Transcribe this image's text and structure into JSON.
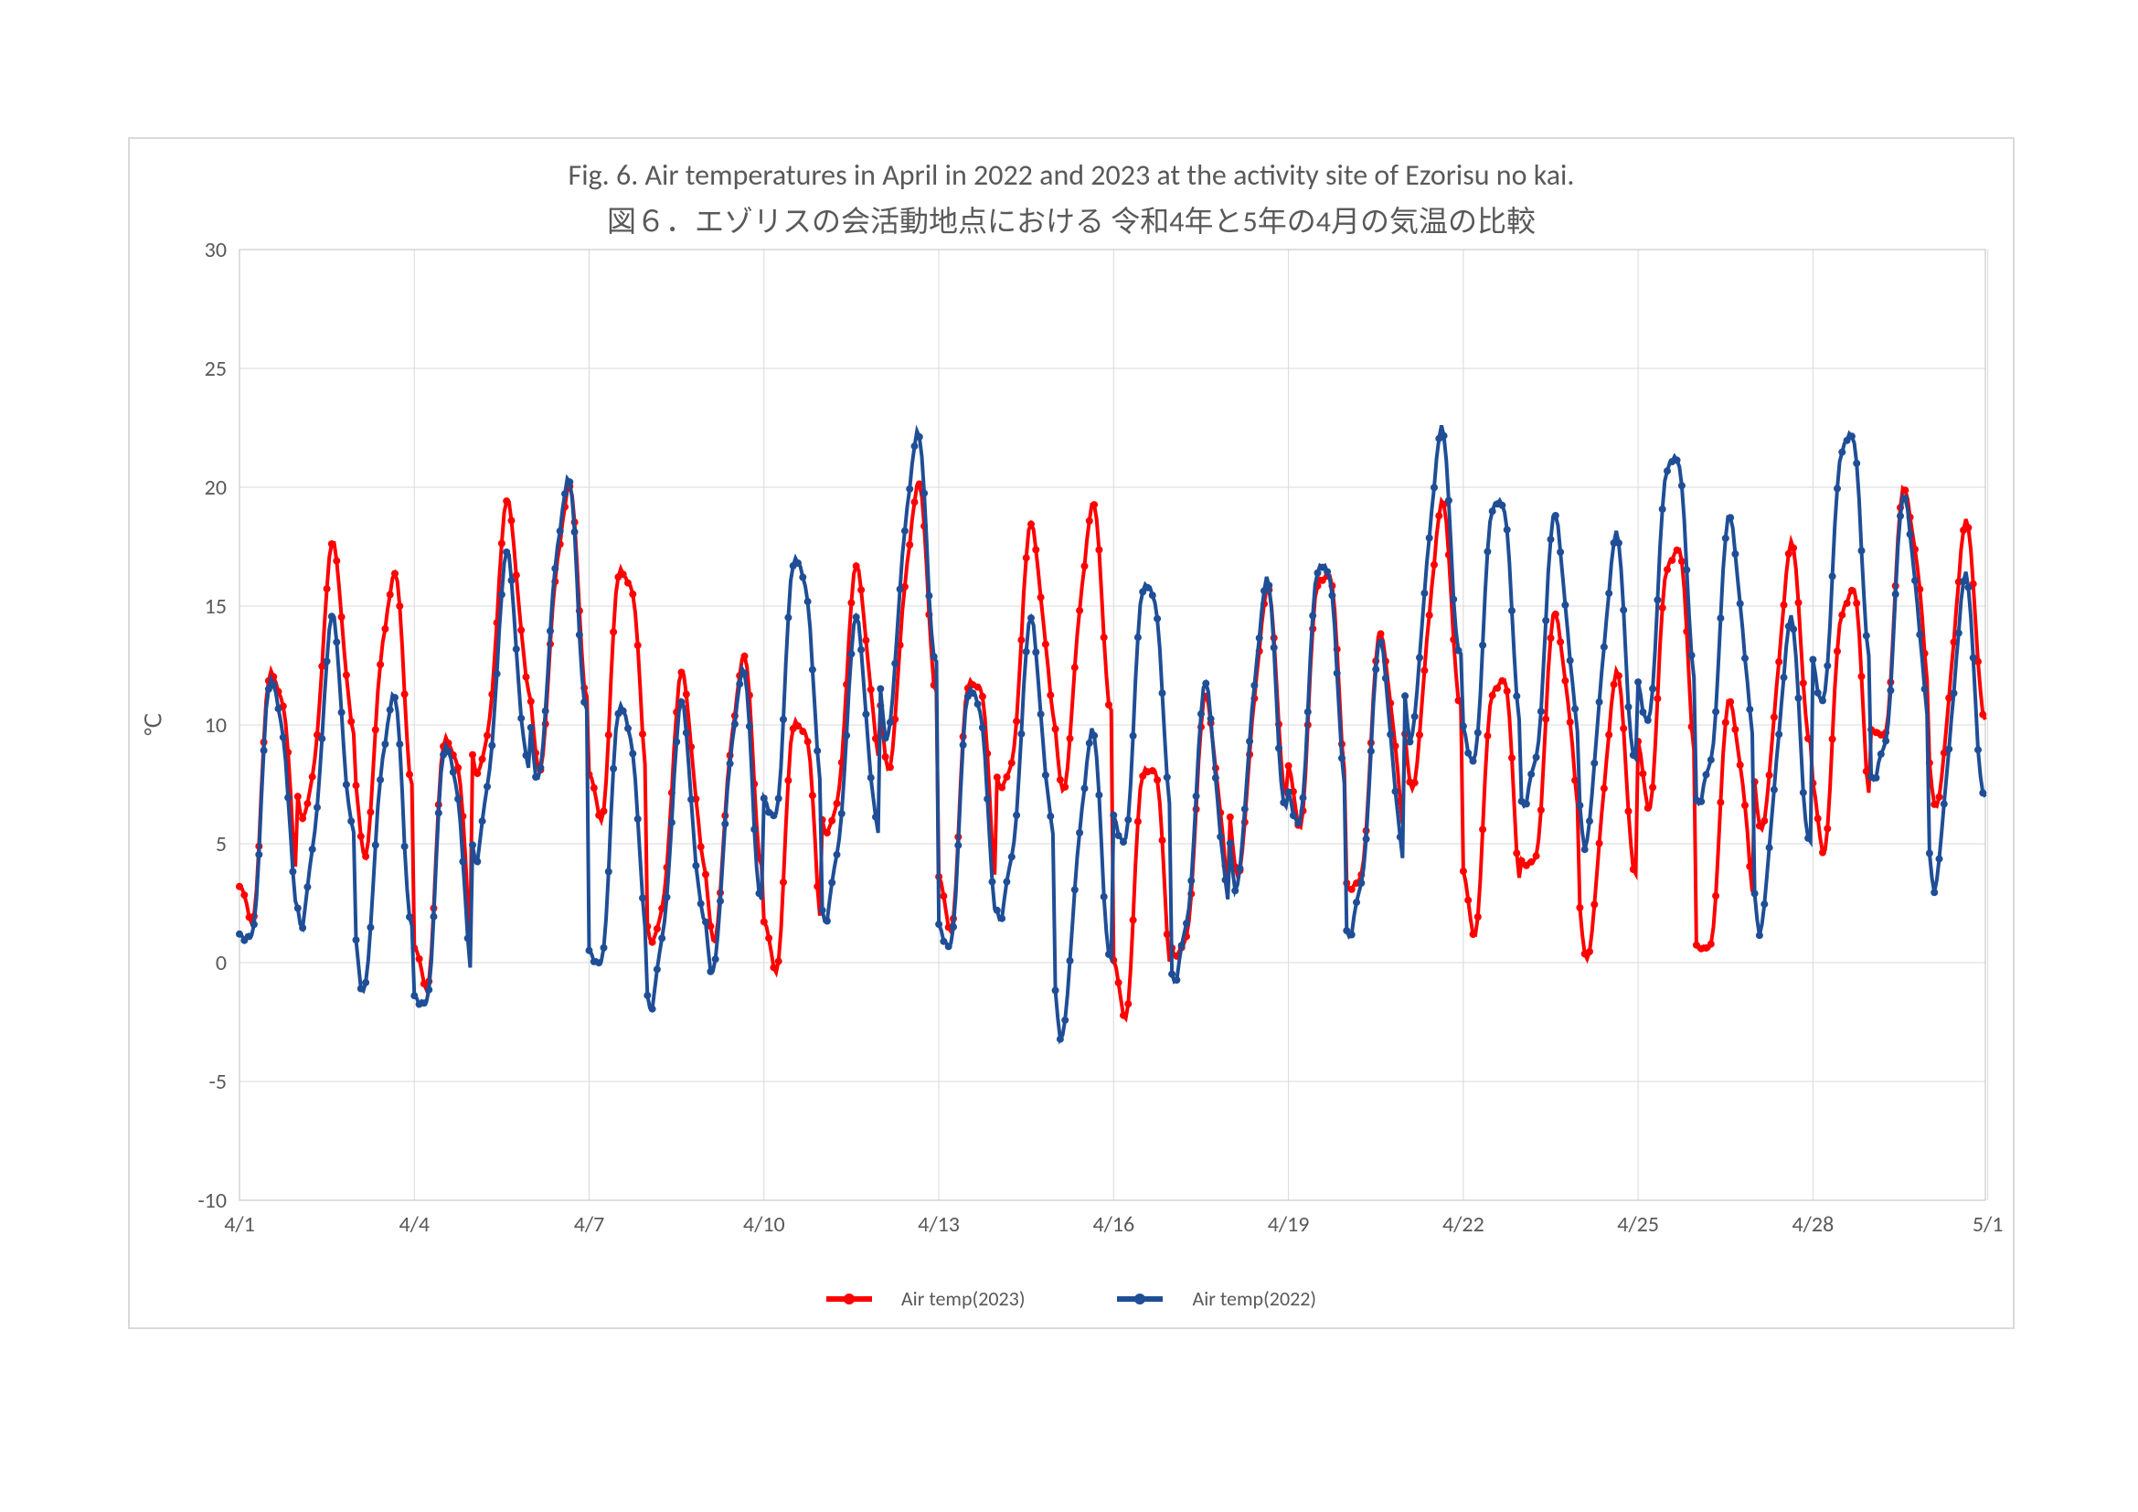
{
  "chart": {
    "type": "line",
    "title_en": "Fig. 6.  Air temperatures in April in 2022 and 2023 at the activity site of Ezorisu no kai.",
    "title_ja": "図６．エゾリスの会活動地点における 令和4年と5年の4月の気温の比較",
    "title_fontsize_en": 32,
    "title_fontsize_ja": 32,
    "title_color": "#595959",
    "ylabel": "℃",
    "ylabel_fontsize": 24,
    "ylim": [
      -10,
      30
    ],
    "ytick_step": 5,
    "yticks": [
      -10,
      -5,
      0,
      5,
      10,
      15,
      20,
      25,
      30
    ],
    "xticks": [
      "4/1",
      "4/4",
      "4/7",
      "4/10",
      "4/13",
      "4/16",
      "4/19",
      "4/22",
      "4/25",
      "4/28",
      "5/1"
    ],
    "x_days": 30,
    "axis_color": "#bfbfbf",
    "grid_color": "#d9d9d9",
    "tick_font_color": "#595959",
    "tick_fontsize": 24,
    "background_color": "#ffffff",
    "plot_border_color": "#d9d9d9",
    "line_width": 4,
    "marker_radius": 4,
    "series": [
      {
        "name": "Air temp(2023)",
        "color": "#ff0000",
        "key": "s2023"
      },
      {
        "name": "Air temp(2022)",
        "color": "#1f4e96",
        "key": "s2022"
      }
    ],
    "legend": {
      "items": [
        {
          "label": "Air temp(2023)",
          "color": "#ff0000"
        },
        {
          "label": "Air temp(2022)",
          "color": "#1f4e96"
        }
      ],
      "fontsize": 22,
      "color": "#595959"
    },
    "hours_per_point": 1,
    "diurnal_base": {
      "s2023": [
        0,
        -2,
        -3,
        -2,
        2,
        8,
        13,
        16,
        17,
        16,
        13,
        8,
        3,
        1
      ],
      "s2022": [
        -2,
        -4,
        -3,
        -1,
        3,
        9,
        14,
        17,
        18,
        16,
        12,
        6,
        2,
        0
      ]
    },
    "day_offsets": {
      "s2023": [
        -2,
        3,
        2,
        -5,
        5,
        6,
        3,
        -3,
        -2,
        -4,
        2,
        6,
        -2,
        4,
        5,
        -6,
        -4,
        1,
        3,
        -1,
        5,
        -2,
        0,
        -3,
        4,
        -4,
        3,
        2,
        6,
        4
      ],
      "s2022": [
        -3,
        -1,
        -4,
        -6,
        2,
        6,
        -4,
        -5,
        -3,
        3,
        -1,
        8,
        -3,
        -1,
        -6,
        2,
        -4,
        1,
        3,
        -2,
        8,
        6,
        4,
        3,
        8,
        4,
        -1,
        9,
        5,
        1
      ]
    }
  }
}
